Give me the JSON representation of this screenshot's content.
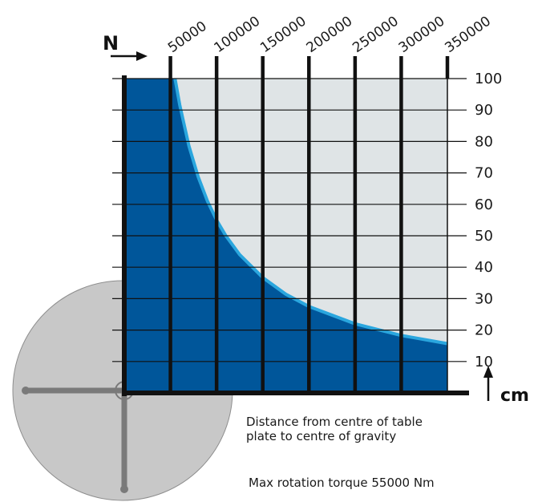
{
  "chart_data": {
    "type": "area",
    "x_unit_label": "N",
    "y_unit_label": "cm",
    "x_ticks": [
      "50000",
      "100000",
      "150000",
      "200000",
      "250000",
      "300000",
      "350000"
    ],
    "y_ticks": [
      "10",
      "20",
      "30",
      "40",
      "50",
      "60",
      "70",
      "80",
      "90",
      "100"
    ],
    "xlim": [
      0,
      350000
    ],
    "ylim": [
      0,
      100
    ],
    "grid": true,
    "series": [
      {
        "x": [
          55000,
          60000,
          70000,
          80000,
          90000,
          100000,
          110000,
          125000,
          150000,
          175000,
          200000,
          250000,
          300000,
          350000
        ],
        "values": [
          100,
          91.7,
          78.6,
          68.8,
          61.1,
          55,
          50,
          44,
          36.7,
          31.4,
          27.5,
          22,
          18.3,
          15.7
        ]
      }
    ],
    "colors": {
      "safe_area": "#00569a",
      "boundary_line": "#2aa6de",
      "outside_area": "#dfe4e6",
      "grid": "#111111",
      "table": "#c8c8c8"
    }
  },
  "notes": {
    "distance_line1": "Distance from centre of table",
    "distance_line2": "plate to centre of gravity",
    "torque": "Max rotation torque 55000 Nm"
  }
}
